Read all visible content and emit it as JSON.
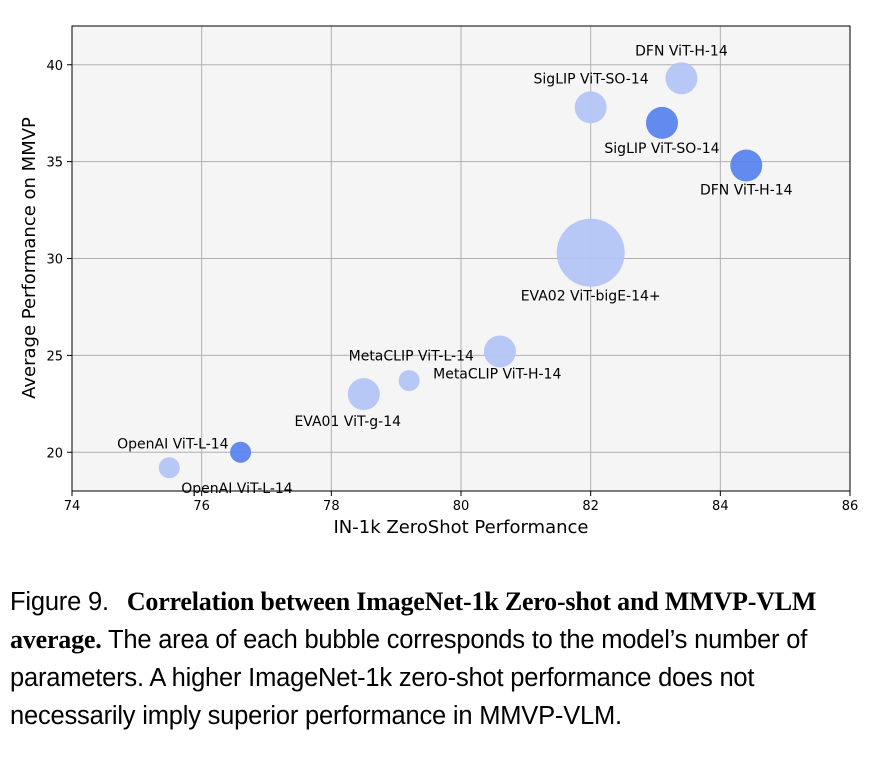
{
  "chart_data": {
    "type": "scatter",
    "title": "",
    "xlabel": "IN-1k ZeroShot Performance",
    "ylabel": "Average Performance on MMVP",
    "xlim": [
      74,
      86
    ],
    "ylim": [
      18,
      42
    ],
    "xticks": [
      74,
      76,
      78,
      80,
      82,
      84,
      86
    ],
    "yticks": [
      20,
      25,
      30,
      35,
      40
    ],
    "grid": true,
    "points": [
      {
        "label": "OpenAI ViT-L-14",
        "x": 75.5,
        "y": 19.2,
        "size": "small",
        "color": "#b3c5f7"
      },
      {
        "label": "OpenAI ViT-L-14",
        "x": 76.6,
        "y": 20.0,
        "size": "small",
        "color": "#5b84ee"
      },
      {
        "label": "EVA01 ViT-g-14",
        "x": 78.5,
        "y": 23.0,
        "size": "medium",
        "color": "#b3c5f7"
      },
      {
        "label": "MetaCLIP ViT-H-14",
        "x": 79.2,
        "y": 23.7,
        "size": "small",
        "color": "#b3c5f7"
      },
      {
        "label": "MetaCLIP ViT-L-14",
        "x": 80.6,
        "y": 25.2,
        "size": "medium",
        "color": "#b3c5f7"
      },
      {
        "label": "EVA02 ViT-bigE-14+",
        "x": 82.0,
        "y": 30.3,
        "size": "large",
        "color": "#b3c5f7"
      },
      {
        "label": "SigLIP ViT-SO-14",
        "x": 82.0,
        "y": 37.8,
        "size": "medium",
        "color": "#b3c5f7"
      },
      {
        "label": "SigLIP ViT-SO-14",
        "x": 83.1,
        "y": 37.0,
        "size": "medium",
        "color": "#5b84ee"
      },
      {
        "label": "DFN ViT-H-14",
        "x": 83.4,
        "y": 39.3,
        "size": "medium",
        "color": "#b3c5f7"
      },
      {
        "label": "DFN ViT-H-14",
        "x": 84.4,
        "y": 34.8,
        "size": "medium",
        "color": "#5b84ee"
      }
    ]
  },
  "caption": {
    "figure_number": "Figure 9.",
    "title": "Correlation between ImageNet-1k Zero-shot and MMVP-VLM average.",
    "body": "The area of each bubble corresponds to the model’s number of parameters. A higher ImageNet-1k zero-shot performance does not necessarily imply superior performance in MMVP-VLM."
  }
}
